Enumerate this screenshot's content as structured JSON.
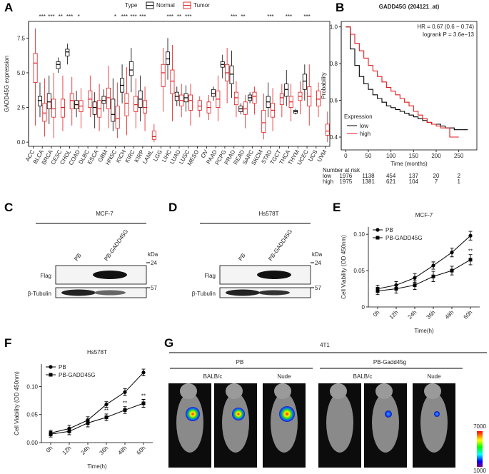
{
  "panel_letters": [
    "A",
    "B",
    "C",
    "D",
    "E",
    "F",
    "G"
  ],
  "chart_data": [
    {
      "type": "box",
      "ylabel": "GADD45G expression",
      "legend_title": "Type",
      "categories": [
        "ACC",
        "BLCA",
        "BRCA",
        "CESC",
        "CHOL",
        "COAD",
        "DLBC",
        "ESCA",
        "GBM",
        "HNSC",
        "KICH",
        "KIRC",
        "KIRP",
        "LAML",
        "LGG",
        "LIHC",
        "LUAD",
        "LUSC",
        "MESO",
        "OV",
        "PAAD",
        "PCPG",
        "PRAD",
        "READ",
        "SARC",
        "SKCM",
        "STAD",
        "TGCT",
        "THCA",
        "THYM",
        "UCEC",
        "UCS",
        "UVM"
      ],
      "series": [
        {
          "name": "Normal",
          "color": "#000000",
          "boxes": [
            null,
            [
              1.8,
              2.6,
              3.0,
              3.3,
              4.3
            ],
            [
              1.3,
              2.4,
              2.9,
              3.5,
              4.8
            ],
            [
              5.0,
              5.3,
              5.6,
              5.8,
              6.1
            ],
            [
              5.6,
              6.2,
              6.5,
              6.7,
              7.1
            ],
            [
              1.8,
              2.4,
              2.7,
              3.0,
              3.7
            ],
            null,
            [
              1.0,
              2.0,
              2.5,
              2.9,
              3.6
            ],
            [
              2.2,
              2.8,
              3.0,
              3.3,
              3.8
            ],
            [
              0.8,
              1.5,
              2.0,
              3.1,
              4.6
            ],
            [
              2.8,
              3.6,
              4.1,
              4.6,
              5.6
            ],
            [
              3.6,
              4.8,
              5.2,
              5.8,
              6.8
            ],
            [
              1.5,
              2.5,
              3.1,
              3.7,
              4.8
            ],
            null,
            null,
            [
              4.5,
              5.6,
              6.0,
              6.5,
              7.5
            ],
            [
              2.6,
              3.0,
              3.3,
              3.6,
              4.0
            ],
            [
              2.2,
              2.9,
              3.2,
              3.5,
              4.1
            ],
            null,
            null,
            [
              3.0,
              3.3,
              3.5,
              3.8,
              4.0
            ],
            [
              4.6,
              5.4,
              5.6,
              5.8,
              6.3
            ],
            [
              3.2,
              4.2,
              4.9,
              5.5,
              6.6
            ],
            [
              2.0,
              2.2,
              2.4,
              2.6,
              2.8
            ],
            [
              2.8,
              3.0,
              3.2,
              3.4,
              3.6
            ],
            null,
            [
              1.8,
              2.5,
              2.9,
              3.3,
              4.3
            ],
            null,
            [
              2.6,
              3.3,
              3.8,
              4.2,
              5.2
            ],
            [
              2.0,
              2.1,
              2.2,
              2.3,
              2.4
            ],
            [
              3.0,
              3.8,
              4.4,
              4.9,
              5.6
            ],
            null,
            null
          ]
        },
        {
          "name": "Tumor",
          "color": "#e41a1c",
          "boxes": [
            [
              1.2,
              4.3,
              5.7,
              6.4,
              8.2
            ],
            [
              0.4,
              1.5,
              2.1,
              2.8,
              4.6
            ],
            [
              0.3,
              1.8,
              2.4,
              3.1,
              5.0
            ],
            [
              0.8,
              1.8,
              2.5,
              3.1,
              4.8
            ],
            [
              1.2,
              2.4,
              3.0,
              3.5,
              4.7
            ],
            [
              1.0,
              2.2,
              2.6,
              3.0,
              3.9
            ],
            [
              1.8,
              2.5,
              3.1,
              3.7,
              4.8
            ],
            [
              0.8,
              1.8,
              2.4,
              3.0,
              4.2
            ],
            [
              1.0,
              2.4,
              3.2,
              3.9,
              5.5
            ],
            [
              0.3,
              1.0,
              1.7,
              2.6,
              4.3
            ],
            [
              0.5,
              1.9,
              2.8,
              3.5,
              5.4
            ],
            [
              1.0,
              2.2,
              2.7,
              3.3,
              4.6
            ],
            [
              0.8,
              2.1,
              2.5,
              3.0,
              4.0
            ],
            [
              0,
              0.2,
              0.4,
              0.8,
              1.3
            ],
            [
              2.2,
              4.0,
              5.0,
              5.6,
              6.8
            ],
            [
              1.5,
              3.5,
              4.4,
              5.2,
              7.0
            ],
            [
              1.8,
              2.6,
              3.0,
              3.4,
              4.2
            ],
            [
              1.2,
              2.3,
              3.0,
              3.4,
              4.2
            ],
            [
              1.8,
              2.3,
              2.6,
              3.0,
              3.3
            ],
            [
              1.6,
              2.1,
              2.5,
              2.9,
              3.4
            ],
            [
              1.5,
              2.5,
              3.1,
              3.7,
              4.8
            ],
            [
              2.8,
              4.4,
              5.0,
              5.6,
              6.8
            ],
            [
              1.8,
              2.7,
              3.2,
              3.6,
              4.4
            ],
            [
              1.0,
              2.0,
              2.4,
              2.9,
              3.4
            ],
            [
              2.0,
              2.8,
              3.3,
              3.6,
              4.0
            ],
            [
              0.2,
              0.7,
              1.4,
              2.3,
              3.5
            ],
            [
              0.8,
              1.8,
              2.3,
              2.8,
              3.9
            ],
            [
              1.8,
              2.7,
              3.2,
              3.5,
              4.2
            ],
            [
              1.5,
              2.5,
              2.9,
              3.3,
              4.2
            ],
            [
              2.0,
              3.0,
              3.3,
              3.6,
              4.4
            ],
            [
              1.2,
              2.6,
              3.3,
              4.0,
              5.6
            ],
            [
              1.8,
              2.6,
              3.1,
              3.7,
              4.3
            ],
            [
              0,
              0.5,
              0.8,
              1.3,
              2.2
            ]
          ]
        }
      ],
      "significance": [
        null,
        "***",
        "***",
        "**",
        "***",
        "*",
        null,
        null,
        null,
        "*",
        "***",
        "***",
        "***",
        null,
        null,
        "***",
        "**",
        "***",
        null,
        null,
        null,
        null,
        "***",
        "**",
        null,
        null,
        "***",
        null,
        "***",
        null,
        "***",
        null,
        null
      ],
      "ylim": [
        -0.3,
        8.7
      ],
      "yticks": [
        {
          "value": 0,
          "label": "0.0"
        },
        2.5,
        {
          "value": 5,
          "label": "5.0"
        },
        7.5
      ]
    },
    {
      "type": "km",
      "title": "GADD45G (204121_at)",
      "xlabel": "Time (months)",
      "ylabel": "Probability",
      "annotations": [
        "HR = 0.67 (0.6 − 0.74)",
        "logrank P = 3.6e−13"
      ],
      "legend_title": "Expression",
      "risk_title": "Number at risk",
      "x": [
        0,
        10,
        20,
        30,
        40,
        50,
        60,
        70,
        80,
        90,
        100,
        110,
        120,
        130,
        140,
        150,
        160,
        170,
        180,
        190,
        200,
        210,
        220,
        230,
        240,
        250,
        260,
        270
      ],
      "series": [
        {
          "name": "low",
          "color": "#000000",
          "values": [
            1,
            0.88,
            0.79,
            0.73,
            0.69,
            0.66,
            0.63,
            0.61,
            0.59,
            0.57,
            0.56,
            0.55,
            0.54,
            0.53,
            0.52,
            0.51,
            0.5,
            0.49,
            0.48,
            0.47,
            0.47,
            0.46,
            0.45,
            0.45,
            0.44,
            0.44,
            0.44,
            0.44
          ],
          "at_risk": [
            1976,
            1138,
            454,
            137,
            20,
            2
          ]
        },
        {
          "name": "high",
          "color": "#e41a1c",
          "values": [
            1,
            0.96,
            0.91,
            0.87,
            0.83,
            0.79,
            0.76,
            0.73,
            0.7,
            0.67,
            0.65,
            0.63,
            0.61,
            0.59,
            0.57,
            0.54,
            0.52,
            0.5,
            0.48,
            0.47,
            0.46,
            0.45,
            0.45,
            0.4,
            0.4,
            0.4,
            null,
            null
          ],
          "at_risk": [
            1975,
            1381,
            621,
            104,
            7,
            1
          ]
        }
      ],
      "xlim": [
        -10,
        290
      ],
      "xticks": [
        0,
        50,
        100,
        150,
        200,
        250
      ],
      "ylim": [
        0.33,
        1.03
      ],
      "yticks": [
        0.4,
        0.6,
        0.8,
        {
          "value": 1,
          "label": "1.0"
        }
      ]
    },
    {
      "type": "line",
      "title": "MCF-7",
      "xlabel": "Time(h)",
      "ylabel": "Cell Viability (OD 450nm)",
      "categories": [
        "0h",
        "12h",
        "24h",
        "36h",
        "48h",
        "60h"
      ],
      "series": [
        {
          "name": "PB",
          "color": "#000000",
          "marker": "circle",
          "values": [
            0.025,
            0.03,
            0.04,
            0.057,
            0.075,
            0.098
          ],
          "errors": [
            0.005,
            0.005,
            0.006,
            0.005,
            0.006,
            0.006
          ]
        },
        {
          "name": "PB-GADD45G",
          "color": "#000000",
          "marker": "square",
          "values": [
            0.022,
            0.025,
            0.03,
            0.042,
            0.05,
            0.065
          ],
          "errors": [
            0.005,
            0.006,
            0.006,
            0.007,
            0.006,
            0.007
          ]
        }
      ],
      "significance": [
        null,
        null,
        null,
        null,
        null,
        "**"
      ],
      "ylim": [
        0,
        0.11
      ],
      "yticks": [
        0,
        0.05,
        {
          "value": 0.1,
          "label": "0.10"
        }
      ]
    },
    {
      "type": "line",
      "title": "Hs578T",
      "xlabel": "Time(h)",
      "ylabel": "Cell Viability (OD 450nm)",
      "categories": [
        "0h",
        "12h",
        "24h",
        "36h",
        "48h",
        "60h"
      ],
      "series": [
        {
          "name": "PB",
          "color": "#000000",
          "marker": "circle",
          "values": [
            0.017,
            0.025,
            0.04,
            0.068,
            0.09,
            0.125
          ],
          "errors": [
            0.005,
            0.006,
            0.006,
            0.005,
            0.006,
            0.006
          ]
        },
        {
          "name": "PB-GADD45G",
          "color": "#000000",
          "marker": "square",
          "values": [
            0.015,
            0.02,
            0.035,
            0.045,
            0.058,
            0.07
          ],
          "errors": [
            0.005,
            0.006,
            0.007,
            0.006,
            0.006,
            0.007
          ]
        }
      ],
      "significance": [
        null,
        null,
        null,
        "**",
        "**",
        "**"
      ],
      "ylim": [
        0,
        0.14
      ],
      "yticks": [
        {
          "value": 0,
          "label": "0.00"
        },
        0.05,
        {
          "value": 0.1,
          "label": "0.10"
        }
      ]
    }
  ],
  "blots": [
    {
      "title": "MCF-7",
      "lanes": [
        "PB",
        "PB-GADD45G"
      ],
      "rows": [
        "Flag",
        "β-Tubulin"
      ],
      "unit": "kDa",
      "markers": [
        "24",
        "57"
      ]
    },
    {
      "title": "Hs578T",
      "lanes": [
        "PB",
        "PB-GADD45G"
      ],
      "rows": [
        "Flag",
        "β-Tubulin"
      ],
      "unit": "kDa",
      "markers": [
        "24",
        "57"
      ]
    }
  ],
  "imaging": {
    "title": "4T1",
    "groups": [
      {
        "name": "PB",
        "subgroups": [
          "BALB/c",
          "Nude"
        ]
      },
      {
        "name": "PB-Gadd45g",
        "subgroups": [
          "BALB/c",
          "Nude"
        ]
      }
    ],
    "colorbar": {
      "max": "7000",
      "min": "1000"
    }
  }
}
